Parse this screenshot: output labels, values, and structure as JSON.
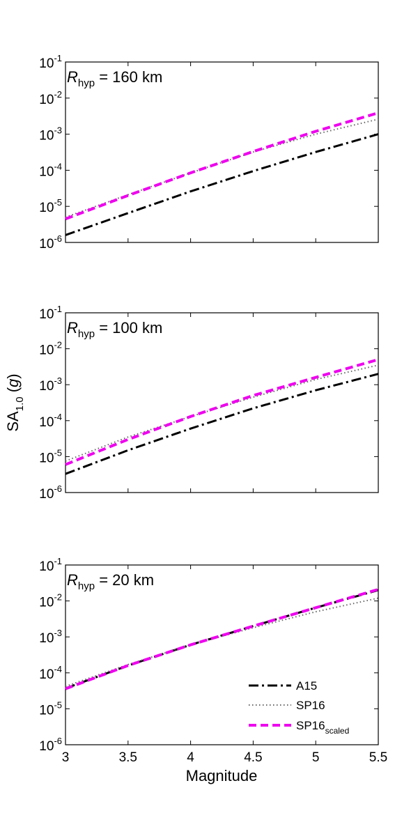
{
  "chart_data": [
    {
      "type": "line",
      "panel_label": {
        "symbol": "R",
        "subscript": "hyp",
        "rest": " = 160 km"
      },
      "xlim": [
        3,
        5.5
      ],
      "ylim": [
        1e-06,
        0.1
      ],
      "yscale": "log",
      "x": [
        3.0,
        3.5,
        4.0,
        4.5,
        5.0,
        5.5
      ],
      "series": [
        {
          "name": "A15",
          "values": [
            1.6e-06,
            6.5e-06,
            2.6e-05,
            9.5e-05,
            0.00032,
            0.001
          ]
        },
        {
          "name": "SP16",
          "values": [
            5e-06,
            2.1e-05,
            8.5e-05,
            0.00032,
            0.001,
            0.0026
          ]
        },
        {
          "name": "SP16_scaled",
          "values": [
            4.5e-06,
            2e-05,
            8.5e-05,
            0.00033,
            0.0012,
            0.0039
          ]
        }
      ]
    },
    {
      "type": "line",
      "panel_label": {
        "symbol": "R",
        "subscript": "hyp",
        "rest": " = 100 km"
      },
      "xlim": [
        3,
        5.5
      ],
      "ylim": [
        1e-06,
        0.1
      ],
      "yscale": "log",
      "x": [
        3.0,
        3.5,
        4.0,
        4.5,
        5.0,
        5.5
      ],
      "series": [
        {
          "name": "A15",
          "values": [
            3.3e-06,
            1.5e-05,
            6e-05,
            0.00022,
            0.0007,
            0.002
          ]
        },
        {
          "name": "SP16",
          "values": [
            7.5e-06,
            3.5e-05,
            0.00013,
            0.00045,
            0.0014,
            0.0035
          ]
        },
        {
          "name": "SP16_scaled",
          "values": [
            6e-06,
            3e-05,
            0.00013,
            0.0005,
            0.0016,
            0.005
          ]
        }
      ]
    },
    {
      "type": "line",
      "panel_label": {
        "symbol": "R",
        "subscript": "hyp",
        "rest": " = 20 km"
      },
      "xlim": [
        3,
        5.5
      ],
      "ylim": [
        1e-06,
        0.1
      ],
      "yscale": "log",
      "x": [
        3.0,
        3.5,
        4.0,
        4.5,
        5.0,
        5.5
      ],
      "series": [
        {
          "name": "A15",
          "values": [
            3.7e-05,
            0.00016,
            0.0006,
            0.002,
            0.0065,
            0.02
          ]
        },
        {
          "name": "SP16",
          "values": [
            4.2e-05,
            0.00017,
            0.0006,
            0.0018,
            0.005,
            0.012
          ]
        },
        {
          "name": "SP16_scaled",
          "values": [
            3.6e-05,
            0.00016,
            0.0006,
            0.002,
            0.0065,
            0.021
          ]
        }
      ]
    }
  ],
  "axes": {
    "xlabel": "Magnitude",
    "ylabel": {
      "main": "SA",
      "subscript": "1.0",
      "unit_open": " (",
      "unit": "g",
      "unit_close": ")"
    },
    "x_ticks": [
      "3",
      "3.5",
      "4",
      "4.5",
      "5",
      "5.5"
    ],
    "y_ticks": [
      {
        "base": "10",
        "exp": "-1"
      },
      {
        "base": "10",
        "exp": "-2"
      },
      {
        "base": "10",
        "exp": "-3"
      },
      {
        "base": "10",
        "exp": "-4"
      },
      {
        "base": "10",
        "exp": "-5"
      },
      {
        "base": "10",
        "exp": "-6"
      }
    ]
  },
  "legend": {
    "placement": "bottom-right of bottom panel",
    "items": [
      {
        "label": "A15",
        "subscript": ""
      },
      {
        "label": "SP16",
        "subscript": ""
      },
      {
        "label": "SP16",
        "subscript": "scaled"
      }
    ]
  },
  "styles": {
    "A15": {
      "color": "#000000",
      "dash": "14 5 3 5",
      "width": 3
    },
    "SP16": {
      "color": "#666666",
      "dash": "1.5 3.5",
      "width": 2
    },
    "SP16_scaled": {
      "color": "#ee00ee",
      "dash": "11 6",
      "width": 4
    }
  }
}
